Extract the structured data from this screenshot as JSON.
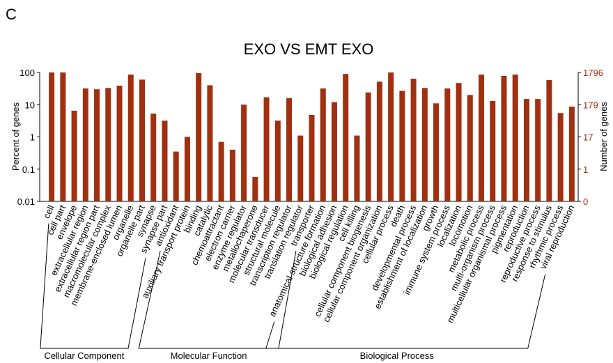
{
  "panel_label": "C",
  "chart_data": {
    "type": "bar",
    "title": "EXO VS EMT EXO",
    "ylabel": "Percent of genes",
    "y2label": "Number of genes",
    "log": true,
    "color": "#a0300f",
    "y2color": "#a0300f",
    "ylim": [
      0.01,
      100
    ],
    "yticks": [
      100,
      10,
      1,
      0.1,
      0.01
    ],
    "y2ticks": [
      1796,
      179,
      17,
      1,
      0
    ],
    "groups": [
      {
        "name": "Cellular Component",
        "categories": [
          "cell",
          "cell part",
          "envelope",
          "extracellular region",
          "extracellular region part",
          "macromolecular complex",
          "membrane-enclosed lumen",
          "organelle",
          "organelle part",
          "synapse",
          "synapse part"
        ],
        "values": [
          100,
          100,
          6.5,
          32,
          30,
          33,
          39,
          86,
          60,
          5.3,
          3.2
        ]
      },
      {
        "name": "Molecular Function",
        "categories": [
          "antioxidant",
          "auxiliary transport protein",
          "binding",
          "catalytic",
          "chemoattractant",
          "electron carrier",
          "enzyme regulator",
          "metallochaperone",
          "molecular transducer",
          "structural molecule",
          "transcription regulator",
          "translation regulator",
          "transporter"
        ],
        "values": [
          0.35,
          1,
          95,
          40,
          0.7,
          0.4,
          10,
          0.057,
          17,
          3.2,
          16,
          1.1,
          4.8
        ]
      },
      {
        "name": "Biological Process",
        "categories": [
          "anatomical structure formation",
          "biological adhesion",
          "biological regulation",
          "cell killing",
          "cellular component biogenesis",
          "cellular component organization",
          "cellular process",
          "death",
          "developmental process",
          "establishment of localization",
          "growth",
          "immune system process",
          "localization",
          "locomotion",
          "metabolic process",
          "multi-organism process",
          "multicellular organismal process",
          "pigmentation",
          "reproduction",
          "reproductive process",
          "response to stimulus",
          "rhythmic process",
          "viral reproduction"
        ],
        "values": [
          32,
          12,
          90,
          1.1,
          24,
          52,
          100,
          27,
          64,
          33,
          11,
          32,
          47,
          20,
          86,
          13,
          78,
          86,
          15,
          15,
          58,
          5.5,
          8.7
        ]
      }
    ]
  }
}
